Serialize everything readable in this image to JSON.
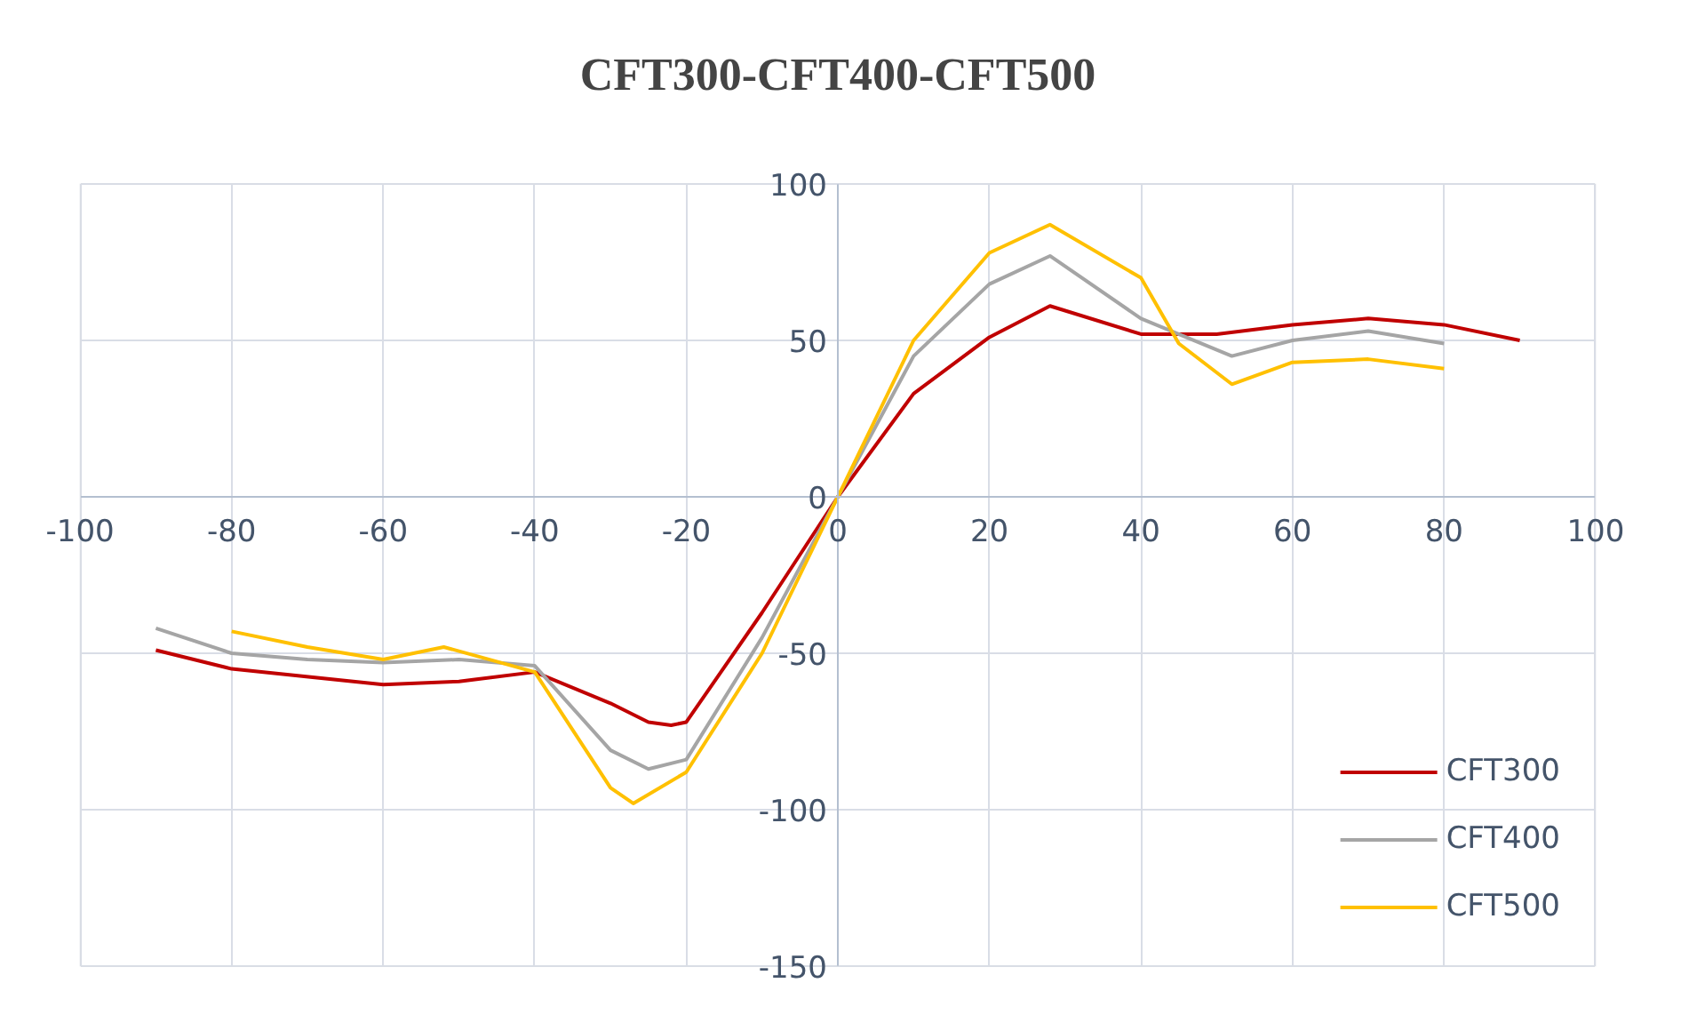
{
  "chart_data": {
    "type": "line",
    "title": "CFT300-CFT400-CFT500",
    "xlim": [
      -100,
      100
    ],
    "ylim": [
      -150,
      100
    ],
    "xticks": [
      -100,
      -80,
      -60,
      -40,
      -20,
      0,
      20,
      40,
      60,
      80,
      100
    ],
    "yticks": [
      -150,
      -100,
      -50,
      0,
      50,
      100
    ],
    "grid": true,
    "legend": "bottom right",
    "line_style": "solid",
    "series": [
      {
        "name": "CFT300",
        "color": "#c00000",
        "x": [
          -90,
          -80,
          -60,
          -50,
          -40,
          -30,
          -25,
          -22,
          -20,
          -10,
          0,
          10,
          20,
          28,
          40,
          50,
          60,
          70,
          80,
          90
        ],
        "values": [
          -49,
          -55,
          -60,
          -59,
          -56,
          -66,
          -72,
          -73,
          -72,
          -37,
          0,
          33,
          51,
          61,
          52,
          52,
          55,
          57,
          55,
          50
        ]
      },
      {
        "name": "CFT400",
        "color": "#a5a5a5",
        "x": [
          -90,
          -80,
          -70,
          -60,
          -50,
          -40,
          -30,
          -25,
          -20,
          -10,
          0,
          10,
          20,
          28,
          40,
          52,
          60,
          70,
          80
        ],
        "values": [
          -42,
          -50,
          -52,
          -53,
          -52,
          -54,
          -81,
          -87,
          -84,
          -45,
          0,
          45,
          68,
          77,
          57,
          45,
          50,
          53,
          49
        ]
      },
      {
        "name": "CFT500",
        "color": "#ffc000",
        "x": [
          -80,
          -70,
          -60,
          -52,
          -40,
          -30,
          -27,
          -20,
          -10,
          0,
          10,
          20,
          28,
          40,
          45,
          52,
          60,
          70,
          80
        ],
        "values": [
          -43,
          -48,
          -52,
          -48,
          -56,
          -93,
          -98,
          -88,
          -50,
          0,
          50,
          78,
          87,
          70,
          49,
          36,
          43,
          44,
          41
        ]
      }
    ]
  }
}
